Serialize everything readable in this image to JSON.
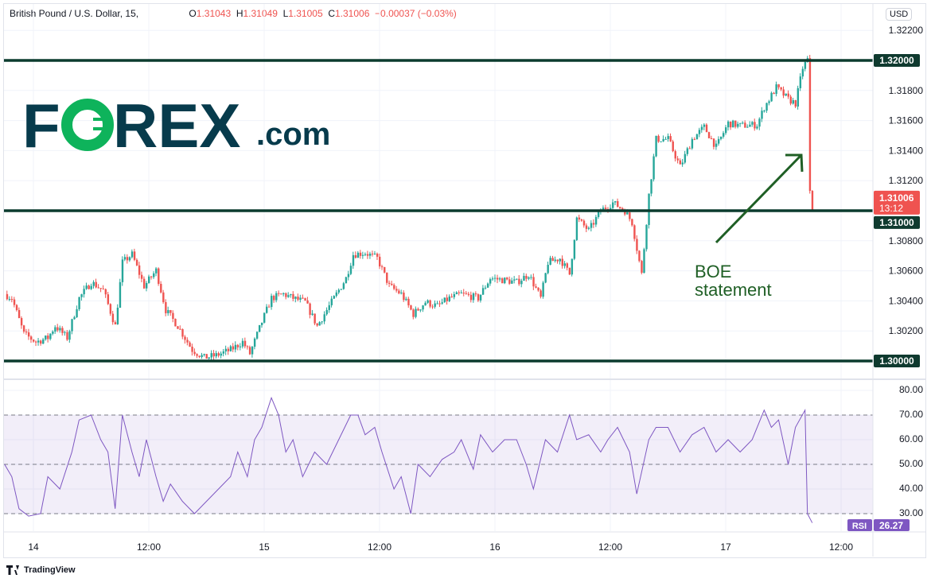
{
  "header": {
    "symbol": "British Pound / U.S. Dollar, 15,",
    "o_label": "O",
    "o": "1.31043",
    "h_label": "H",
    "h": "1.31049",
    "l_label": "L",
    "l": "1.31005",
    "c_label": "C",
    "c": "1.31006",
    "change": "−0.00037 (−0.03%)",
    "currency": "USD"
  },
  "logo": {
    "text": "FOREX.com"
  },
  "footer": {
    "brand": "TradingView",
    "icon": "tradingview-logo-icon"
  },
  "colors": {
    "up": "#26a69a",
    "down": "#ef5350",
    "level_line": "#0b3b2e",
    "rsi": "#7e57c2",
    "annotation": "#1f5f25"
  },
  "chart_data": [
    {
      "type": "candlestick",
      "title": "British Pound / U.S. Dollar, 15",
      "ylim": [
        1.2985,
        1.3227
      ],
      "yticks": [
        "1.30200",
        "1.30400",
        "1.30600",
        "1.30800",
        "1.31200",
        "1.31400",
        "1.31600",
        "1.31800",
        "1.32200"
      ],
      "xticks": [
        "14",
        "12:00",
        "15",
        "12:00",
        "16",
        "12:00",
        "17",
        "12:00"
      ],
      "grid": true,
      "levels": [
        {
          "value": 1.32,
          "label": "1.32000"
        },
        {
          "value": 1.31,
          "label": "1.31000"
        },
        {
          "value": 1.3,
          "label": "1.30000"
        }
      ],
      "last_price": {
        "label": "1.31006",
        "countdown": "13:12"
      },
      "annotation": {
        "text_line1": "BOE",
        "text_line2": "statement"
      },
      "close_path": [
        [
          "13 21:00",
          1.30445
        ],
        [
          "13 21:45",
          1.30418
        ],
        [
          "13 23:00",
          1.3018
        ],
        [
          "14 00:15",
          1.30127
        ],
        [
          "14 01:30",
          1.30154
        ],
        [
          "14 02:15",
          1.30233
        ],
        [
          "14 03:30",
          1.30154
        ],
        [
          "14 04:45",
          1.30418
        ],
        [
          "14 06:00",
          1.30524
        ],
        [
          "14 07:15",
          1.30471
        ],
        [
          "14 08:30",
          1.30233
        ],
        [
          "14 09:15",
          1.30656
        ],
        [
          "14 10:15",
          1.30709
        ],
        [
          "14 11:30",
          1.30498
        ],
        [
          "14 12:45",
          1.30603
        ],
        [
          "14 13:45",
          1.30339
        ],
        [
          "14 15:00",
          1.30233
        ],
        [
          "14 16:30",
          1.30074
        ],
        [
          "14 17:45",
          1.30022
        ],
        [
          "14 19:00",
          1.30037
        ],
        [
          "14 20:30",
          1.30074
        ],
        [
          "14 21:45",
          1.30127
        ],
        [
          "14 22:30",
          1.30048
        ],
        [
          "14 23:45",
          1.3026
        ],
        [
          "15 00:45",
          1.30418
        ],
        [
          "15 02:00",
          1.30445
        ],
        [
          "15 03:00",
          1.30418
        ],
        [
          "15 04:15",
          1.30392
        ],
        [
          "15 05:30",
          1.30233
        ],
        [
          "15 07:15",
          1.30418
        ],
        [
          "15 08:30",
          1.30551
        ],
        [
          "15 09:15",
          1.30709
        ],
        [
          "15 10:30",
          1.3072
        ],
        [
          "15 11:45",
          1.30683
        ],
        [
          "15 13:00",
          1.30498
        ],
        [
          "15 14:15",
          1.30445
        ],
        [
          "15 15:30",
          1.30312
        ],
        [
          "15 16:45",
          1.30392
        ],
        [
          "15 18:00",
          1.30365
        ],
        [
          "15 19:15",
          1.30418
        ],
        [
          "15 20:30",
          1.30445
        ],
        [
          "15 22:15",
          1.30418
        ],
        [
          "15 23:30",
          1.30551
        ],
        [
          "16 00:45",
          1.3054
        ],
        [
          "16 02:15",
          1.30524
        ],
        [
          "16 03:30",
          1.30577
        ],
        [
          "16 04:45",
          1.30418
        ],
        [
          "16 05:30",
          1.30656
        ],
        [
          "16 06:45",
          1.30683
        ],
        [
          "16 07:45",
          1.30577
        ],
        [
          "16 08:30",
          1.30947
        ],
        [
          "16 09:45",
          1.30868
        ],
        [
          "16 11:00",
          1.31
        ],
        [
          "16 12:15",
          1.31053
        ],
        [
          "16 13:30",
          1.31
        ],
        [
          "16 14:15",
          1.30921
        ],
        [
          "16 15:15",
          1.30577
        ],
        [
          "16 16:00",
          1.31106
        ],
        [
          "16 16:45",
          1.31476
        ],
        [
          "16 18:00",
          1.31476
        ],
        [
          "16 19:15",
          1.31291
        ],
        [
          "16 20:30",
          1.31476
        ],
        [
          "16 21:45",
          1.31556
        ],
        [
          "16 23:00",
          1.31423
        ],
        [
          "17 00:15",
          1.31582
        ],
        [
          "17 01:30",
          1.31566
        ],
        [
          "17 03:15",
          1.31572
        ],
        [
          "17 04:00",
          1.31688
        ],
        [
          "17 05:15",
          1.3182
        ],
        [
          "17 06:30",
          1.31741
        ],
        [
          "17 07:15",
          1.31714
        ],
        [
          "17 08:00",
          1.31952
        ],
        [
          "17 08:30",
          1.32005
        ],
        [
          "17 08:45",
          1.31132
        ],
        [
          "17 09:00",
          1.31006
        ]
      ]
    },
    {
      "type": "line",
      "title": "RSI",
      "ylim": [
        26,
        82
      ],
      "yticks": [
        "30.00",
        "40.00",
        "50.00",
        "60.00",
        "70.00",
        "80.00"
      ],
      "band": [
        30,
        70
      ],
      "dashed_levels": [
        30,
        50,
        70
      ],
      "last_value": {
        "label": "RSI",
        "value": "26.27"
      },
      "points": [
        [
          "13 21:00",
          50
        ],
        [
          "13 21:45",
          45
        ],
        [
          "13 22:30",
          32
        ],
        [
          "13 23:30",
          29
        ],
        [
          "14 00:45",
          30
        ],
        [
          "14 01:30",
          45
        ],
        [
          "14 02:45",
          40
        ],
        [
          "14 04:00",
          55
        ],
        [
          "14 04:45",
          68
        ],
        [
          "14 06:00",
          70
        ],
        [
          "14 07:00",
          60
        ],
        [
          "14 07:45",
          55
        ],
        [
          "14 08:30",
          32
        ],
        [
          "14 09:15",
          70
        ],
        [
          "14 10:15",
          55
        ],
        [
          "14 11:00",
          45
        ],
        [
          "14 11:45",
          60
        ],
        [
          "14 12:45",
          45
        ],
        [
          "14 13:30",
          35
        ],
        [
          "14 14:15",
          42
        ],
        [
          "14 15:30",
          35
        ],
        [
          "14 16:45",
          30
        ],
        [
          "14 18:00",
          35
        ],
        [
          "14 19:15",
          40
        ],
        [
          "14 20:30",
          45
        ],
        [
          "14 21:15",
          55
        ],
        [
          "14 22:15",
          45
        ],
        [
          "14 23:00",
          60
        ],
        [
          "14 23:45",
          65
        ],
        [
          "15 00:45",
          77
        ],
        [
          "15 01:30",
          70
        ],
        [
          "15 02:15",
          55
        ],
        [
          "15 03:00",
          60
        ],
        [
          "15 04:00",
          45
        ],
        [
          "15 05:15",
          55
        ],
        [
          "15 06:30",
          50
        ],
        [
          "15 07:45",
          60
        ],
        [
          "15 09:00",
          70
        ],
        [
          "15 09:45",
          70
        ],
        [
          "15 10:30",
          62
        ],
        [
          "15 11:30",
          65
        ],
        [
          "15 12:15",
          55
        ],
        [
          "15 13:30",
          40
        ],
        [
          "15 14:15",
          45
        ],
        [
          "15 15:15",
          30
        ],
        [
          "15 16:00",
          50
        ],
        [
          "15 17:15",
          45
        ],
        [
          "15 18:30",
          52
        ],
        [
          "15 19:45",
          55
        ],
        [
          "15 20:30",
          60
        ],
        [
          "15 21:45",
          48
        ],
        [
          "15 22:30",
          62
        ],
        [
          "15 23:45",
          55
        ],
        [
          "16 01:00",
          60
        ],
        [
          "16 02:15",
          60
        ],
        [
          "16 03:15",
          50
        ],
        [
          "16 04:00",
          40
        ],
        [
          "16 05:15",
          60
        ],
        [
          "16 06:30",
          55
        ],
        [
          "16 07:45",
          70
        ],
        [
          "16 08:30",
          60
        ],
        [
          "16 09:45",
          62
        ],
        [
          "16 11:00",
          55
        ],
        [
          "16 11:45",
          60
        ],
        [
          "16 12:45",
          65
        ],
        [
          "16 14:00",
          55
        ],
        [
          "16 14:45",
          38
        ],
        [
          "16 16:00",
          60
        ],
        [
          "16 16:45",
          65
        ],
        [
          "16 18:00",
          65
        ],
        [
          "16 19:15",
          55
        ],
        [
          "16 20:30",
          62
        ],
        [
          "16 21:45",
          65
        ],
        [
          "16 23:00",
          55
        ],
        [
          "17 00:15",
          60
        ],
        [
          "17 01:30",
          55
        ],
        [
          "17 02:45",
          60
        ],
        [
          "17 04:00",
          72
        ],
        [
          "17 04:45",
          65
        ],
        [
          "17 05:30",
          68
        ],
        [
          "17 06:30",
          50
        ],
        [
          "17 07:15",
          65
        ],
        [
          "17 08:15",
          72
        ],
        [
          "17 08:30",
          30
        ],
        [
          "17 09:00",
          26.27
        ]
      ]
    }
  ]
}
